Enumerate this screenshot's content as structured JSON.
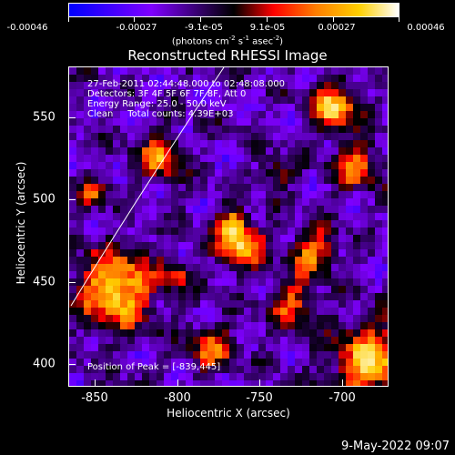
{
  "colorbar": {
    "labels": [
      "-0.00046",
      "-0.00027",
      "-9.1e-05",
      "9.1e-05",
      "0.00027",
      "0.00046"
    ],
    "units_prefix": "(photons cm",
    "units_sup1": "-2",
    "units_mid": " s",
    "units_sup2": "-1",
    "units_mid2": " asec",
    "units_sup3": "-2",
    "units_suffix": ")"
  },
  "title": "Reconstructed RHESSI Image",
  "info": {
    "line1": "27-Feb-2011 02:44:48.000 to 02:48:08.000",
    "line2": "Detectors: 3F 4F 5F 6F 7F 8F, Att 0",
    "line3": "Energy Range: 25.0 - 50.0 keV",
    "line4": "Clean     Total counts: 4.39E+03",
    "peak": "Position of Peak = [-839,445]"
  },
  "axes": {
    "x_title": "Heliocentric X (arcsec)",
    "y_title": "Heliocentric Y (arcsec)",
    "x_ticks": [
      "-850",
      "-800",
      "-750",
      "-700"
    ],
    "y_ticks": [
      "550",
      "500",
      "450",
      "400"
    ],
    "x_range": [
      -866,
      -674
    ],
    "y_range": [
      388,
      580
    ]
  },
  "footer": {
    "datestamp": "9-May-2022 09:07"
  },
  "colors": {
    "background": "#000000",
    "foreground": "#ffffff"
  }
}
